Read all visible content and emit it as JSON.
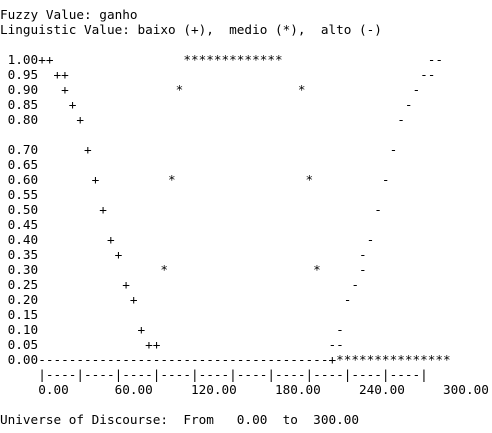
{
  "fuzzy_value_line": "Fuzzy Value: ganho",
  "linguistic_value_line": "Linguistic Value: baixo (+),  medio (*),  alto (-)",
  "plot_rows": [
    " 1.00++                 *************                   --",
    " 0.95  ++                                              --",
    " 0.90   +              *               *              -",
    " 0.85    +                                           -",
    " 0.80     +                                         -",
    " 0.70      +                                       -",
    " 0.65",
    " 0.60       +         *                 *         -",
    " 0.55",
    " 0.50        +                                   -",
    " 0.45",
    " 0.40         +                                 -",
    " 0.35          +                               -",
    " 0.30                *                   *     -",
    " 0.25           +                             -",
    " 0.20            +                           -",
    " 0.15",
    " 0.10             +                         -",
    " 0.05              ++                      --",
    " 0.00--------------------------------------+***************"
  ],
  "axis_ticks_line": "     |----|----|----|----|----|----|----|----|----|----|",
  "axis_labels_line": "     0.00      60.00     120.00     180.00     240.00     300.00",
  "universe_line": "Universe of Discourse:  From   0.00  to  300.00"
}
